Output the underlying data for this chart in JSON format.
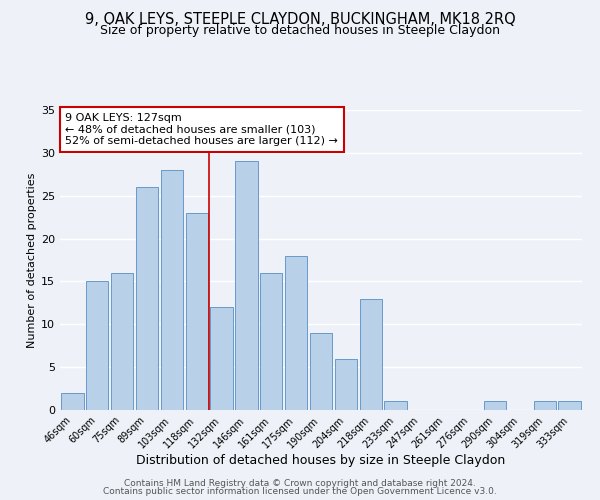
{
  "title": "9, OAK LEYS, STEEPLE CLAYDON, BUCKINGHAM, MK18 2RQ",
  "subtitle": "Size of property relative to detached houses in Steeple Claydon",
  "xlabel": "Distribution of detached houses by size in Steeple Claydon",
  "ylabel": "Number of detached properties",
  "bar_labels": [
    "46sqm",
    "60sqm",
    "75sqm",
    "89sqm",
    "103sqm",
    "118sqm",
    "132sqm",
    "146sqm",
    "161sqm",
    "175sqm",
    "190sqm",
    "204sqm",
    "218sqm",
    "233sqm",
    "247sqm",
    "261sqm",
    "276sqm",
    "290sqm",
    "304sqm",
    "319sqm",
    "333sqm"
  ],
  "bar_values": [
    2,
    15,
    16,
    26,
    28,
    23,
    12,
    29,
    16,
    18,
    9,
    6,
    13,
    1,
    0,
    0,
    0,
    1,
    0,
    1,
    1
  ],
  "bar_color": "#b8d0e8",
  "bar_edge_color": "#6699cc",
  "bg_color": "#eef2f8",
  "grid_color": "#ffffff",
  "ylim": [
    0,
    35
  ],
  "yticks": [
    0,
    5,
    10,
    15,
    20,
    25,
    30,
    35
  ],
  "vline_x": 5.5,
  "vline_color": "#cc0000",
  "annotation_text": "9 OAK LEYS: 127sqm\n← 48% of detached houses are smaller (103)\n52% of semi-detached houses are larger (112) →",
  "annotation_box_edgecolor": "#cc0000",
  "footer1": "Contains HM Land Registry data © Crown copyright and database right 2024.",
  "footer2": "Contains public sector information licensed under the Open Government Licence v3.0.",
  "title_fontsize": 10.5,
  "subtitle_fontsize": 9,
  "xlabel_fontsize": 9,
  "ylabel_fontsize": 8,
  "annotation_fontsize": 8,
  "footer_fontsize": 6.5,
  "tick_fontsize": 7
}
